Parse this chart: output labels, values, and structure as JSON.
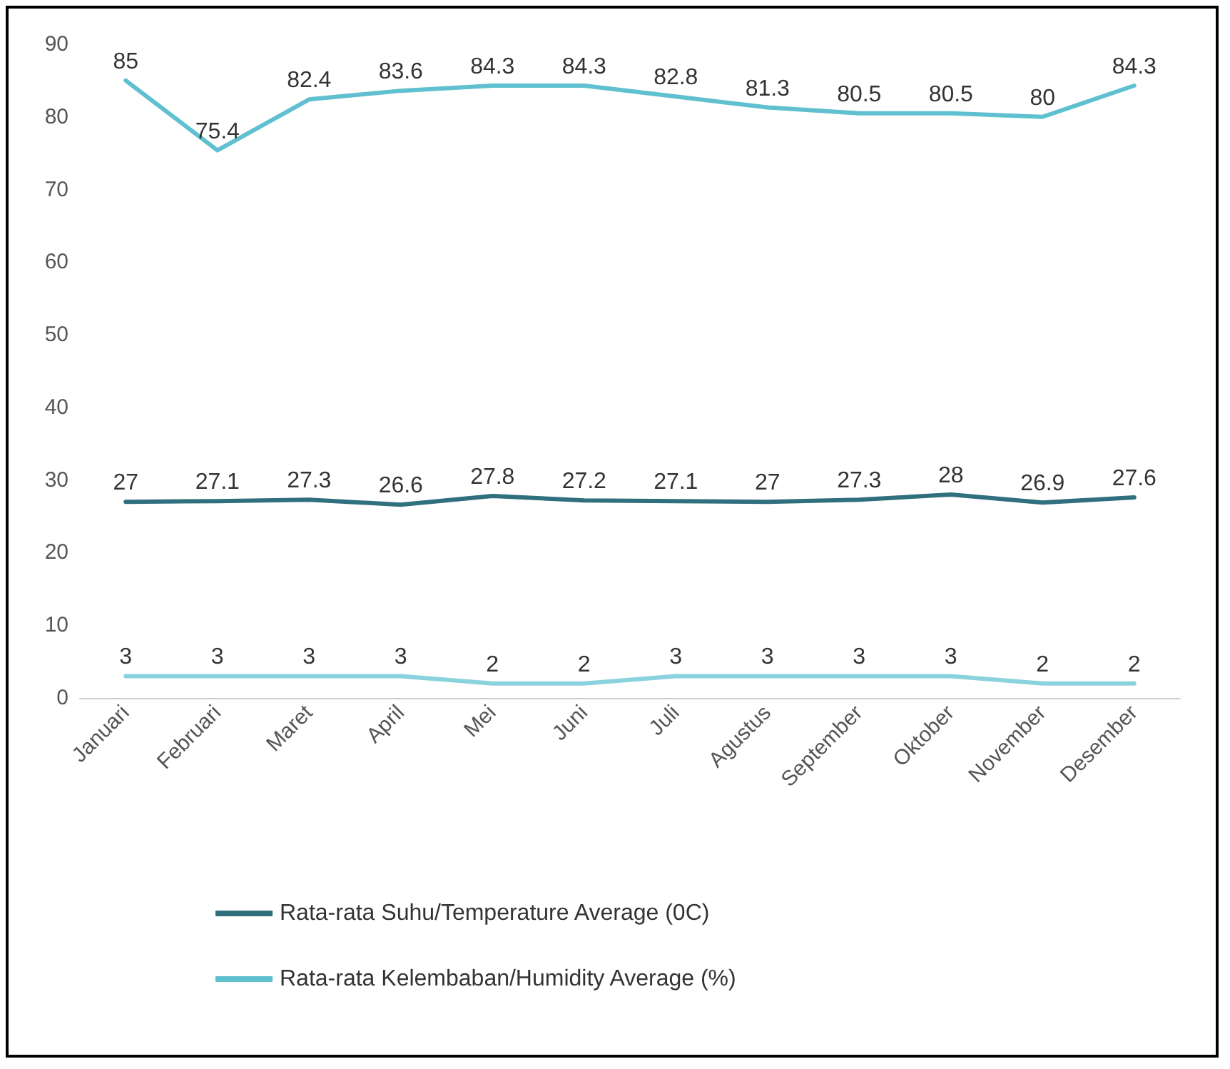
{
  "chart_data": {
    "type": "line",
    "categories": [
      "Januari",
      "Februari",
      "Maret",
      "April",
      "Mei",
      "Juni",
      "Juli",
      "Agustus",
      "September",
      "Oktober",
      "November",
      "Desember"
    ],
    "series": [
      {
        "name": "Rata-rata Suhu/Temperature Average (0C)",
        "color": "#2f6f7e",
        "values": [
          27,
          27.1,
          27.3,
          26.6,
          27.8,
          27.2,
          27.1,
          27,
          27.3,
          28,
          26.9,
          27.6
        ]
      },
      {
        "name": "Rata-rata Kelembaban/Humidity Average (%)",
        "color": "#5fc0d0",
        "values": [
          85,
          75.4,
          82.4,
          83.6,
          84.3,
          84.3,
          82.8,
          81.3,
          80.5,
          80.5,
          80,
          84.3
        ]
      },
      {
        "color": "#8ad2de",
        "values": [
          3,
          3,
          3,
          3,
          2,
          2,
          3,
          3,
          3,
          3,
          2,
          2
        ]
      }
    ],
    "ylim": [
      0,
      90
    ],
    "yticks": [
      0,
      10,
      20,
      30,
      40,
      50,
      60,
      70,
      80,
      90
    ],
    "grid": false,
    "legend": "bottom",
    "data_labels": true,
    "marker": "none",
    "line_style": "solid"
  }
}
